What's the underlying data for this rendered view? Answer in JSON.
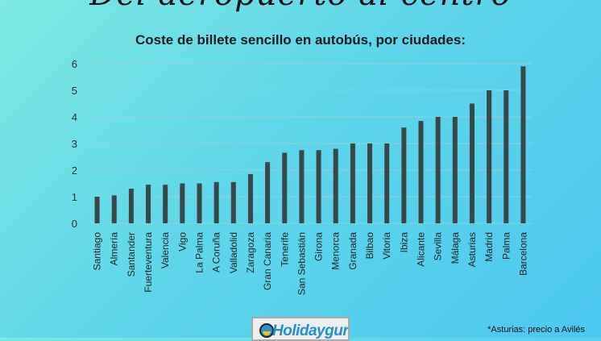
{
  "header": {
    "title": "Del aeropuerto al centro",
    "subtitle": "Coste de billete sencillo en autobús, por ciudades:"
  },
  "footnote": "*Asturias: precio a Avilés",
  "logo": {
    "text": "Holidayguru",
    "icon": "sun-umbrella-icon"
  },
  "colors": {
    "bar": "#37474a",
    "grid": "#8fd2d8",
    "text": "#222222"
  },
  "chart_data": {
    "type": "bar",
    "title": "Coste de billete sencillo en autobús, por ciudades:",
    "categories": [
      "Santiago",
      "Almería",
      "Santander",
      "Fuerteventura",
      "Valencia",
      "Vigo",
      "La Palma",
      "A Coruña",
      "Valladolid",
      "Zaragoza",
      "Gran Canaria",
      "Tenerife",
      "San Sebastián",
      "Girona",
      "Menorca",
      "Granada",
      "Bilbao",
      "Vitoria",
      "Ibiza",
      "Alicante",
      "Sevilla",
      "Málaga",
      "Asturias",
      "Madrid",
      "Palma",
      "Barcelona"
    ],
    "values": [
      1.0,
      1.05,
      1.3,
      1.45,
      1.45,
      1.5,
      1.5,
      1.55,
      1.55,
      1.85,
      2.3,
      2.65,
      2.75,
      2.75,
      2.8,
      3.0,
      3.0,
      3.0,
      3.6,
      3.85,
      4.0,
      4.0,
      4.5,
      5.0,
      5.0,
      5.9
    ],
    "yticks": [
      0,
      1,
      2,
      3,
      4,
      5,
      6
    ],
    "ylim": [
      0,
      6
    ],
    "grid": true,
    "xlabel": "",
    "ylabel": ""
  }
}
